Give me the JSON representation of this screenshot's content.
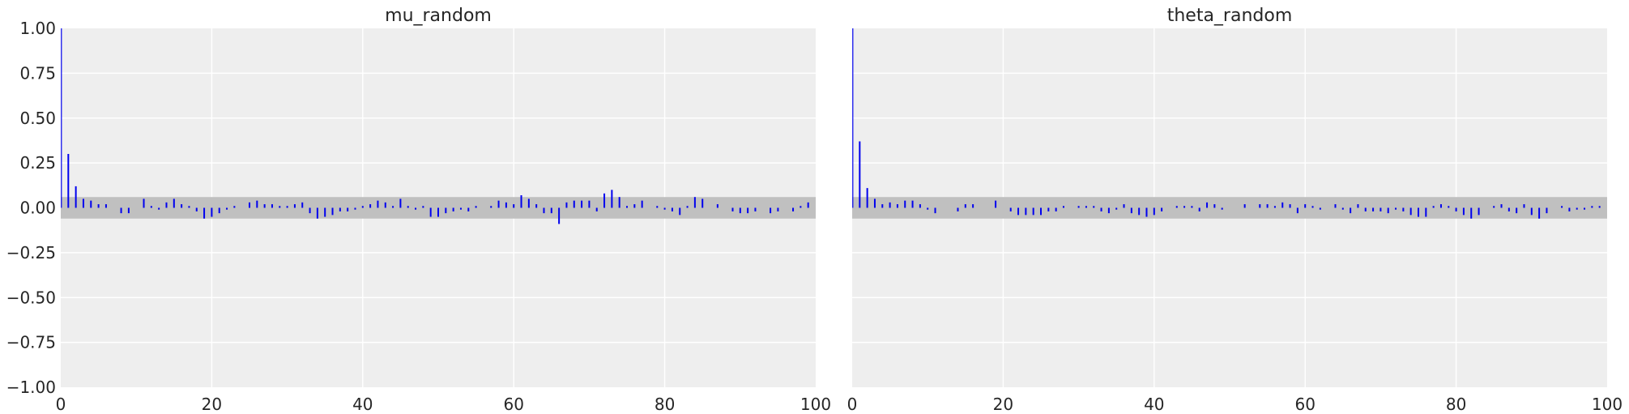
{
  "chart_data": [
    {
      "type": "bar",
      "title": "mu_random",
      "xlim": [
        0,
        100
      ],
      "ylim": [
        -1.0,
        1.0
      ],
      "xticks": [
        0,
        20,
        40,
        60,
        80,
        100
      ],
      "yticks": [
        -1.0,
        -0.75,
        -0.5,
        -0.25,
        0.0,
        0.25,
        0.5,
        0.75,
        1.0
      ],
      "ytick_labels": [
        "−1.00",
        "−0.75",
        "−0.50",
        "−0.25",
        "0.00",
        "0.25",
        "0.50",
        "0.75",
        "1.00"
      ],
      "xtick_labels": [
        "0",
        "20",
        "40",
        "60",
        "80",
        "100"
      ],
      "grid": true,
      "confidence_band": [
        -0.06,
        0.06
      ],
      "series": [
        {
          "x": [
            0,
            1,
            2,
            3,
            4,
            5,
            6,
            7,
            8,
            9,
            10,
            11,
            12,
            13,
            14,
            15,
            16,
            17,
            18,
            19,
            20,
            21,
            22,
            23,
            24,
            25,
            26,
            27,
            28,
            29,
            30,
            31,
            32,
            33,
            34,
            35,
            36,
            37,
            38,
            39,
            40,
            41,
            42,
            43,
            44,
            45,
            46,
            47,
            48,
            49,
            50,
            51,
            52,
            53,
            54,
            55,
            56,
            57,
            58,
            59,
            60,
            61,
            62,
            63,
            64,
            65,
            66,
            67,
            68,
            69,
            70,
            71,
            72,
            73,
            74,
            75,
            76,
            77,
            78,
            79,
            80,
            81,
            82,
            83,
            84,
            85,
            86,
            87,
            88,
            89,
            90,
            91,
            92,
            93,
            94,
            95,
            96,
            97,
            98,
            99
          ],
          "values": [
            1.0,
            0.3,
            0.12,
            0.05,
            0.04,
            0.02,
            0.02,
            0.0,
            -0.03,
            -0.03,
            0.0,
            0.05,
            0.01,
            -0.01,
            0.03,
            0.05,
            0.02,
            0.01,
            -0.02,
            -0.06,
            -0.05,
            -0.03,
            -0.01,
            0.01,
            0.0,
            0.03,
            0.04,
            0.02,
            0.02,
            0.01,
            0.01,
            0.02,
            0.03,
            -0.03,
            -0.06,
            -0.05,
            -0.04,
            -0.02,
            -0.02,
            -0.01,
            0.01,
            0.02,
            0.04,
            0.03,
            0.01,
            0.05,
            0.01,
            -0.01,
            0.01,
            -0.05,
            -0.05,
            -0.03,
            -0.02,
            -0.01,
            -0.02,
            0.01,
            0.0,
            0.01,
            0.04,
            0.03,
            0.02,
            0.07,
            0.05,
            0.02,
            -0.03,
            -0.03,
            -0.09,
            0.03,
            0.04,
            0.04,
            0.04,
            -0.02,
            0.08,
            0.1,
            0.06,
            0.01,
            0.02,
            0.04,
            0.0,
            0.01,
            -0.01,
            -0.02,
            -0.04,
            0.01,
            0.06,
            0.05,
            0.0,
            0.02,
            0.0,
            -0.02,
            -0.03,
            -0.03,
            -0.02,
            0.0,
            -0.03,
            -0.02,
            0.0,
            -0.02,
            0.01,
            0.03
          ]
        }
      ]
    },
    {
      "type": "bar",
      "title": "theta_random",
      "xlim": [
        0,
        100
      ],
      "ylim": [
        -1.0,
        1.0
      ],
      "xticks": [
        0,
        20,
        40,
        60,
        80,
        100
      ],
      "xtick_labels": [
        "0",
        "20",
        "40",
        "60",
        "80",
        "100"
      ],
      "grid": true,
      "confidence_band": [
        -0.06,
        0.06
      ],
      "series": [
        {
          "x": [
            0,
            1,
            2,
            3,
            4,
            5,
            6,
            7,
            8,
            9,
            10,
            11,
            12,
            13,
            14,
            15,
            16,
            17,
            18,
            19,
            20,
            21,
            22,
            23,
            24,
            25,
            26,
            27,
            28,
            29,
            30,
            31,
            32,
            33,
            34,
            35,
            36,
            37,
            38,
            39,
            40,
            41,
            42,
            43,
            44,
            45,
            46,
            47,
            48,
            49,
            50,
            51,
            52,
            53,
            54,
            55,
            56,
            57,
            58,
            59,
            60,
            61,
            62,
            63,
            64,
            65,
            66,
            67,
            68,
            69,
            70,
            71,
            72,
            73,
            74,
            75,
            76,
            77,
            78,
            79,
            80,
            81,
            82,
            83,
            84,
            85,
            86,
            87,
            88,
            89,
            90,
            91,
            92,
            93,
            94,
            95,
            96,
            97,
            98,
            99
          ],
          "values": [
            1.0,
            0.37,
            0.11,
            0.05,
            0.02,
            0.03,
            0.02,
            0.04,
            0.04,
            0.02,
            -0.01,
            -0.03,
            0.0,
            0.0,
            -0.02,
            0.02,
            0.02,
            0.0,
            0.0,
            0.04,
            0.0,
            -0.02,
            -0.04,
            -0.04,
            -0.04,
            -0.04,
            -0.02,
            -0.02,
            0.01,
            0.0,
            0.01,
            0.01,
            0.01,
            -0.02,
            -0.03,
            -0.01,
            0.02,
            -0.03,
            -0.04,
            -0.05,
            -0.04,
            -0.02,
            0.0,
            0.01,
            0.01,
            0.01,
            -0.02,
            0.03,
            0.02,
            -0.01,
            0.0,
            0.0,
            0.02,
            0.0,
            0.02,
            0.02,
            0.01,
            0.03,
            0.02,
            -0.03,
            0.02,
            0.01,
            -0.01,
            0.0,
            0.02,
            -0.01,
            -0.03,
            0.02,
            -0.02,
            -0.02,
            -0.02,
            -0.03,
            -0.01,
            -0.02,
            -0.04,
            -0.05,
            -0.05,
            0.01,
            0.02,
            0.01,
            -0.02,
            -0.04,
            -0.06,
            -0.04,
            0.0,
            0.01,
            0.02,
            -0.02,
            -0.03,
            0.02,
            -0.04,
            -0.06,
            -0.03,
            0.0,
            0.01,
            -0.02,
            -0.01,
            -0.01,
            0.01,
            0.01
          ]
        }
      ]
    }
  ]
}
